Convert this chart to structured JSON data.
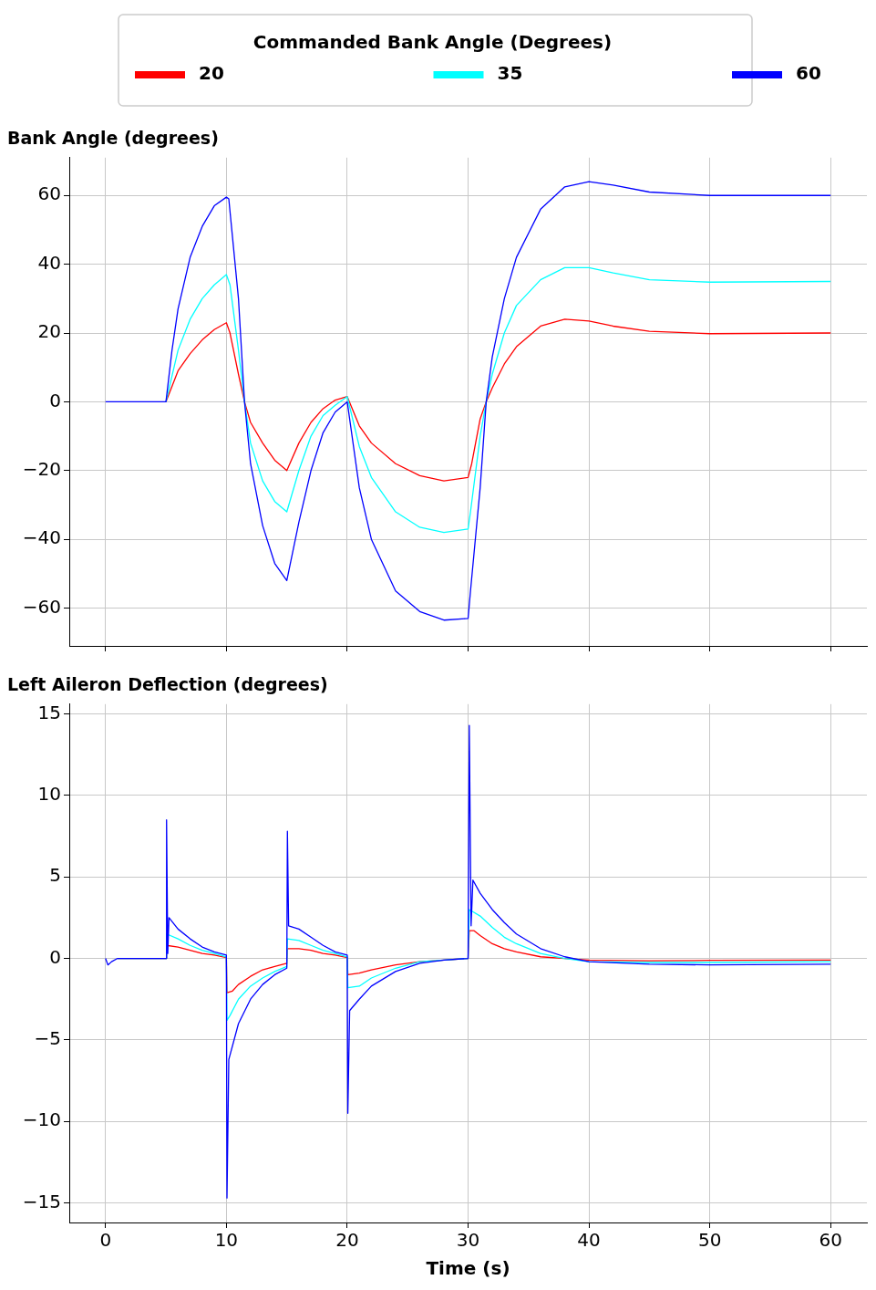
{
  "chart_data": [
    {
      "type": "line",
      "title": "Bank Angle (degrees)",
      "legend_title": "Commanded Bank Angle (Degrees)",
      "legend": "top",
      "grid": true,
      "tick_labels": "y",
      "marker": "none",
      "line_style": "solid",
      "xlim": [
        -3,
        63
      ],
      "xticks": [
        0,
        10,
        20,
        30,
        40,
        50,
        60
      ],
      "ylim": [
        -71,
        71
      ],
      "yticks": [
        {
          "value": -60,
          "label": "−60"
        },
        {
          "value": -40,
          "label": "−40"
        },
        {
          "value": -20,
          "label": "−20"
        },
        0,
        20,
        40,
        60
      ],
      "series": [
        {
          "name": "20",
          "color": "#ff0000",
          "x": [
            5,
            6,
            7,
            8,
            9,
            10,
            10.3,
            11,
            11.5,
            12,
            13,
            14,
            15,
            16,
            17,
            18,
            19,
            20,
            21,
            22,
            24,
            26,
            28,
            30,
            30.3,
            31,
            31.5,
            32,
            33,
            34,
            36,
            38,
            40,
            42,
            45,
            50,
            60
          ],
          "values": [
            0,
            9,
            14,
            18,
            21,
            23,
            20,
            8,
            0,
            -6,
            -12,
            -17,
            -20,
            -12,
            -6,
            -2,
            0.5,
            1.5,
            -7,
            -12,
            -18,
            -21.5,
            -23,
            -22,
            -18,
            -5,
            0,
            4,
            11,
            16,
            22,
            24,
            23.5,
            22,
            20.5,
            19.8,
            20
          ]
        },
        {
          "name": "35",
          "color": "#00ffff",
          "x": [
            5,
            6,
            7,
            8,
            9,
            10,
            10.3,
            11,
            11.5,
            12,
            13,
            14,
            15,
            16,
            17,
            18,
            19,
            20,
            21,
            22,
            24,
            26,
            28,
            30,
            30.2,
            31,
            31.5,
            32,
            33,
            34,
            36,
            38,
            40,
            42,
            45,
            50,
            60
          ],
          "values": [
            0,
            15,
            24,
            30,
            34,
            37,
            34,
            15,
            0,
            -12,
            -23,
            -29,
            -32,
            -20,
            -10,
            -4,
            -1,
            1.5,
            -13,
            -22,
            -32,
            -36.5,
            -38,
            -37,
            -32,
            -10,
            0,
            8,
            20,
            28,
            35.5,
            39,
            39,
            37.5,
            35.5,
            34.8,
            35
          ]
        },
        {
          "name": "60",
          "color": "#0000ff",
          "x": [
            0,
            5,
            5.5,
            6,
            7,
            8,
            9,
            10,
            10.2,
            11,
            11.5,
            12,
            13,
            14,
            15,
            16,
            17,
            18,
            19,
            20,
            21,
            22,
            24,
            26,
            28,
            30,
            30.2,
            31,
            31.5,
            32,
            33,
            34,
            36,
            38,
            40,
            42,
            45,
            50,
            60
          ],
          "values": [
            0,
            0,
            15,
            27,
            42,
            51,
            57,
            59.5,
            59,
            30,
            0,
            -18,
            -36,
            -47,
            -52,
            -35,
            -20,
            -9,
            -3,
            0,
            -25,
            -40,
            -55,
            -61,
            -63.5,
            -63,
            -55,
            -25,
            0,
            13,
            30,
            42,
            56,
            62.5,
            64,
            63,
            61,
            60,
            60
          ]
        }
      ]
    },
    {
      "type": "line",
      "title": "Left Aileron Deflection (degrees)",
      "xlabel": "Time (s)",
      "grid": true,
      "marker": "none",
      "line_style": "solid",
      "xlim": [
        -3,
        63
      ],
      "xticks": [
        0,
        10,
        20,
        30,
        40,
        50,
        60
      ],
      "ylim": [
        -16.2,
        15.6
      ],
      "yticks": [
        {
          "value": -15,
          "label": "−15"
        },
        {
          "value": -10,
          "label": "−10"
        },
        {
          "value": -5,
          "label": "−5"
        },
        0,
        5,
        10,
        15
      ],
      "series": [
        {
          "color": "#ff0000",
          "x": [
            1,
            5,
            5.05,
            6,
            7,
            8,
            9,
            10,
            10.05,
            10.5,
            11,
            12,
            13,
            14,
            15,
            15.05,
            16,
            17,
            18,
            19,
            20,
            20.05,
            21,
            22,
            24,
            26,
            28,
            30,
            30.1,
            30.5,
            31,
            32,
            33,
            34,
            36,
            38,
            40,
            45,
            50,
            60
          ],
          "values": [
            0,
            0,
            0.8,
            0.7,
            0.5,
            0.3,
            0.2,
            0.05,
            -2.1,
            -2,
            -1.6,
            -1.1,
            -0.7,
            -0.5,
            -0.3,
            0.6,
            0.6,
            0.5,
            0.3,
            0.2,
            0.05,
            -1,
            -0.9,
            -0.7,
            -0.4,
            -0.2,
            -0.1,
            0,
            1.7,
            1.7,
            1.4,
            0.9,
            0.6,
            0.4,
            0.1,
            0,
            -0.1,
            -0.15,
            -0.12,
            -0.1
          ]
        },
        {
          "color": "#00ffff",
          "x": [
            1,
            5,
            5.05,
            6,
            7,
            8,
            9,
            10,
            10.05,
            10.3,
            11,
            12,
            13,
            14,
            15,
            15.05,
            16,
            17,
            18,
            19,
            20,
            20.05,
            21,
            22,
            24,
            26,
            28,
            30,
            30.1,
            31,
            32,
            33,
            34,
            36,
            38,
            40,
            45,
            50,
            60
          ],
          "values": [
            0,
            0,
            1.5,
            1.2,
            0.8,
            0.5,
            0.3,
            0.1,
            -3.8,
            -3.5,
            -2.5,
            -1.7,
            -1.2,
            -0.8,
            -0.5,
            1.2,
            1.1,
            0.8,
            0.5,
            0.3,
            0.1,
            -1.8,
            -1.7,
            -1.2,
            -0.6,
            -0.2,
            -0.1,
            0,
            3,
            2.6,
            1.9,
            1.3,
            0.9,
            0.3,
            0,
            -0.2,
            -0.25,
            -0.25,
            -0.2
          ]
        },
        {
          "color": "#0000ff",
          "x": [
            0,
            0.2,
            0.5,
            1,
            5,
            5.05,
            5.15,
            5.25,
            6,
            7,
            8,
            9,
            10,
            10.05,
            10.2,
            11,
            12,
            13,
            14,
            15,
            15.05,
            15.15,
            16,
            17,
            18,
            19,
            20,
            20.05,
            20.2,
            21,
            22,
            24,
            26,
            28,
            30,
            30.1,
            30.25,
            30.4,
            31,
            32,
            33,
            34,
            36,
            38,
            40,
            45,
            50,
            60
          ],
          "values": [
            0,
            -0.4,
            -0.2,
            0,
            0,
            8.5,
            0.3,
            2.5,
            1.8,
            1.2,
            0.7,
            0.4,
            0.2,
            -14.7,
            -6.2,
            -4,
            -2.5,
            -1.6,
            -1,
            -0.6,
            7.8,
            2,
            1.8,
            1.3,
            0.8,
            0.4,
            0.2,
            -9.5,
            -3.2,
            -2.5,
            -1.7,
            -0.8,
            -0.3,
            -0.1,
            0,
            14.3,
            2,
            4.8,
            4,
            3,
            2.2,
            1.5,
            0.6,
            0.1,
            -0.2,
            -0.35,
            -0.4,
            -0.35
          ]
        }
      ]
    }
  ]
}
